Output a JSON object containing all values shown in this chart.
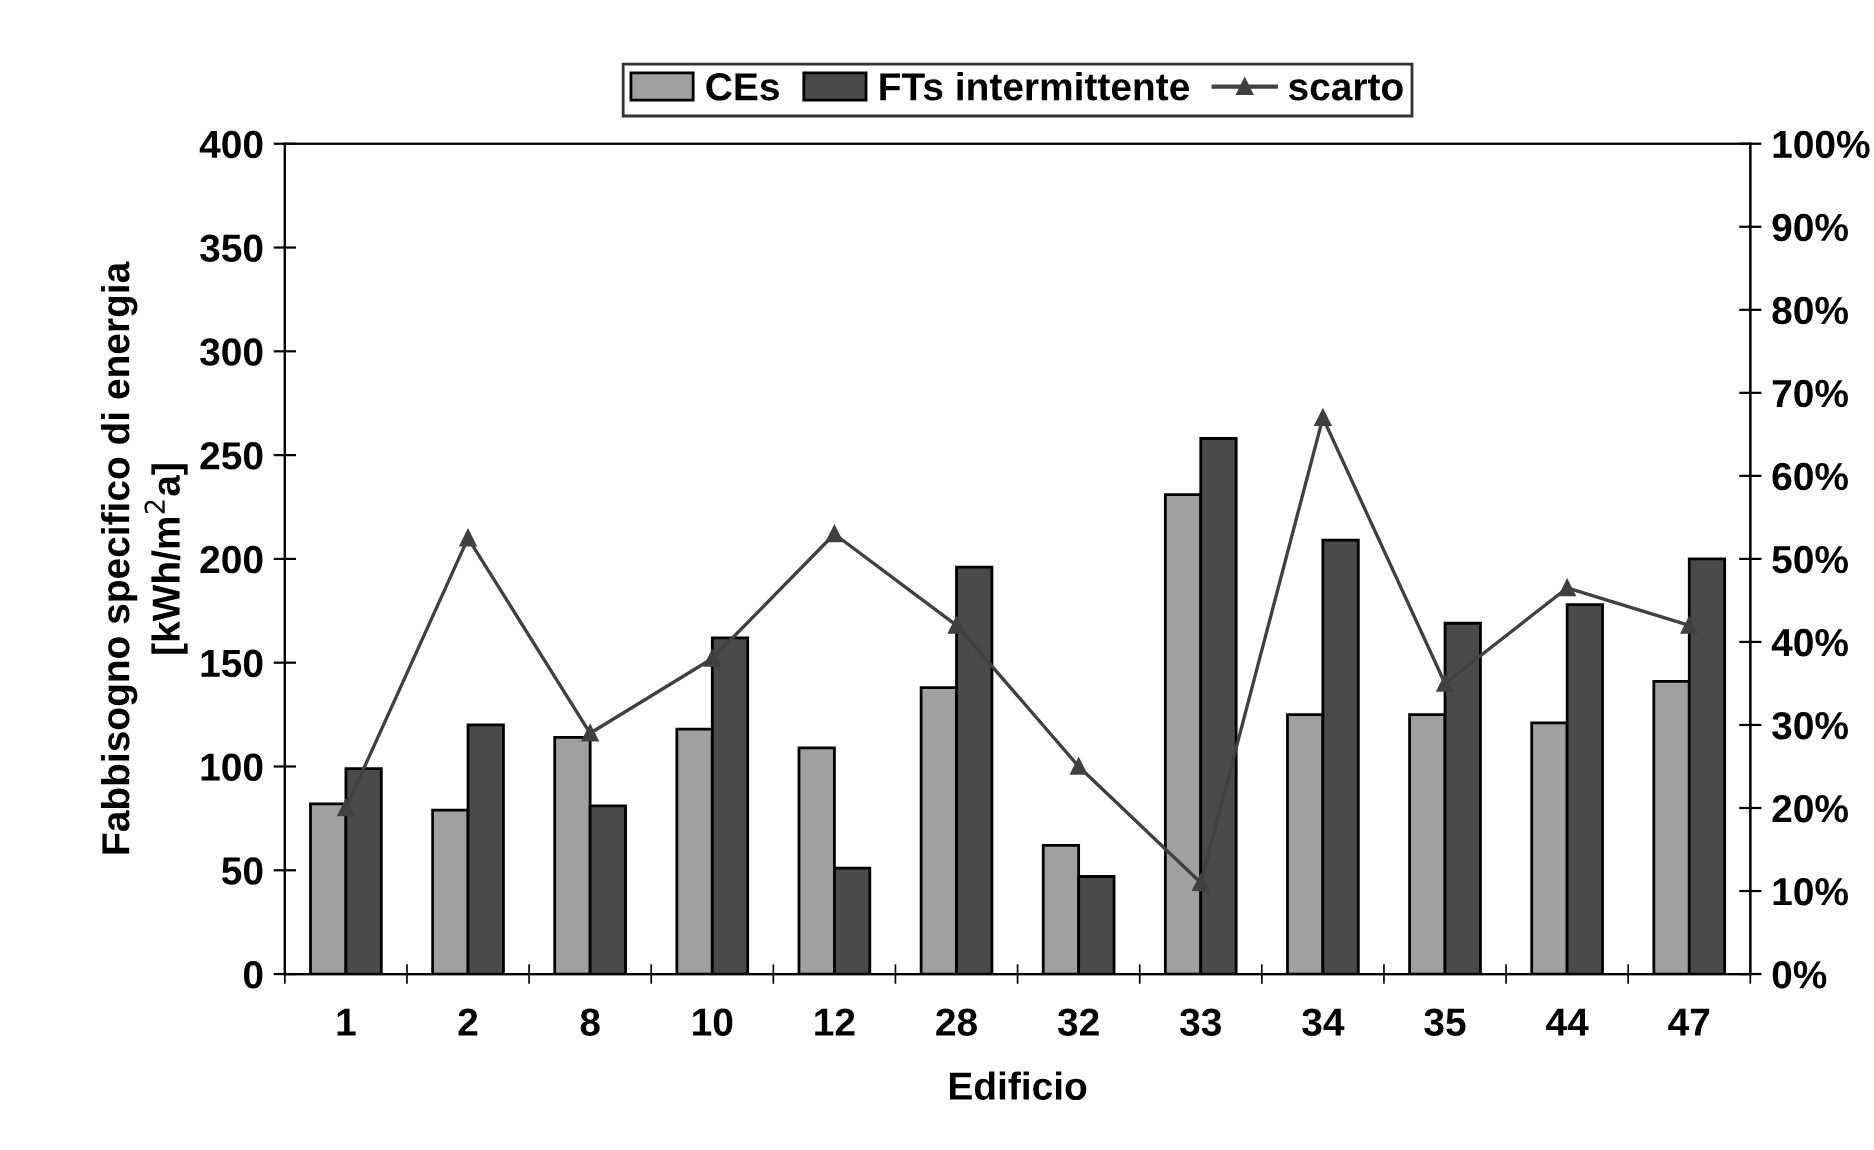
{
  "chart_data": {
    "type": "bar",
    "xlabel": "Edificio",
    "ylabel": "Fabbisogno specifico di energia\n[kWh/m$^{2}$a]",
    "categories": [
      "1",
      "2",
      "8",
      "10",
      "12",
      "28",
      "32",
      "33",
      "34",
      "35",
      "44",
      "47"
    ],
    "series": [
      {
        "name": "CEs",
        "color": "#a0a0a0",
        "values": [
          82,
          79,
          114,
          118,
          109,
          138,
          62,
          231,
          125,
          125,
          121,
          141
        ]
      },
      {
        "name": "FTs intermittente",
        "color": "#4a4a4a",
        "values": [
          99,
          120,
          81,
          162,
          51,
          196,
          47,
          258,
          209,
          169,
          178,
          200
        ]
      },
      {
        "name": "scarto",
        "type": "line",
        "axis": "y2",
        "color": "#404040",
        "marker": "triangle",
        "values": [
          20,
          52.5,
          29,
          38,
          53,
          42,
          25,
          11,
          67,
          35,
          46.5,
          42
        ]
      }
    ],
    "ylim": [
      0,
      400
    ],
    "yticks": [
      0,
      50,
      100,
      150,
      200,
      250,
      300,
      350,
      400
    ],
    "y2lim": [
      0,
      100
    ],
    "y2ticks": [
      {
        "value": 0,
        "label": "0%"
      },
      {
        "value": 10,
        "label": "10%"
      },
      {
        "value": 20,
        "label": "20%"
      },
      {
        "value": 30,
        "label": "30%"
      },
      {
        "value": 40,
        "label": "40%"
      },
      {
        "value": 50,
        "label": "50%"
      },
      {
        "value": 60,
        "label": "60%"
      },
      {
        "value": 70,
        "label": "70%"
      },
      {
        "value": 80,
        "label": "80%"
      },
      {
        "value": 90,
        "label": "90%"
      },
      {
        "value": 100,
        "label": "100%"
      }
    ],
    "legend": "top",
    "grid": false
  }
}
